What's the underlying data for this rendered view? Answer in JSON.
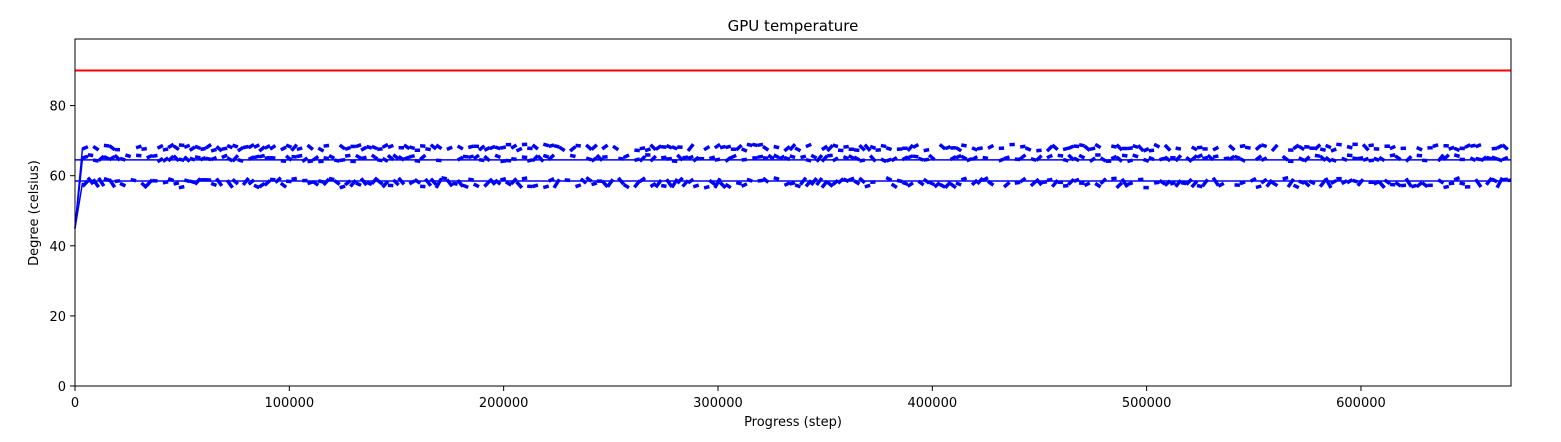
{
  "chart_data": {
    "type": "line",
    "title": "GPU temperature",
    "xlabel": "Progress (step)",
    "ylabel": "Degree (celsius)",
    "xlim": [
      0,
      670000
    ],
    "ylim": [
      0,
      99
    ],
    "xticks": [
      0,
      100000,
      200000,
      300000,
      400000,
      500000,
      600000
    ],
    "yticks": [
      0,
      20,
      40,
      60,
      80
    ],
    "grid": false,
    "threshold": {
      "value": 90,
      "color": "#ff0000"
    },
    "series_color": "#0000ff",
    "series": [
      {
        "base": 68,
        "amplitude": 1,
        "start": 45,
        "density": 0.75
      },
      {
        "base": 65,
        "amplitude": 1,
        "start": 45,
        "density": 0.75
      },
      {
        "base": 58,
        "amplitude": 1.5,
        "start": 45,
        "density": 0.85
      }
    ],
    "reference_lines": [
      64.5,
      58.5
    ]
  }
}
